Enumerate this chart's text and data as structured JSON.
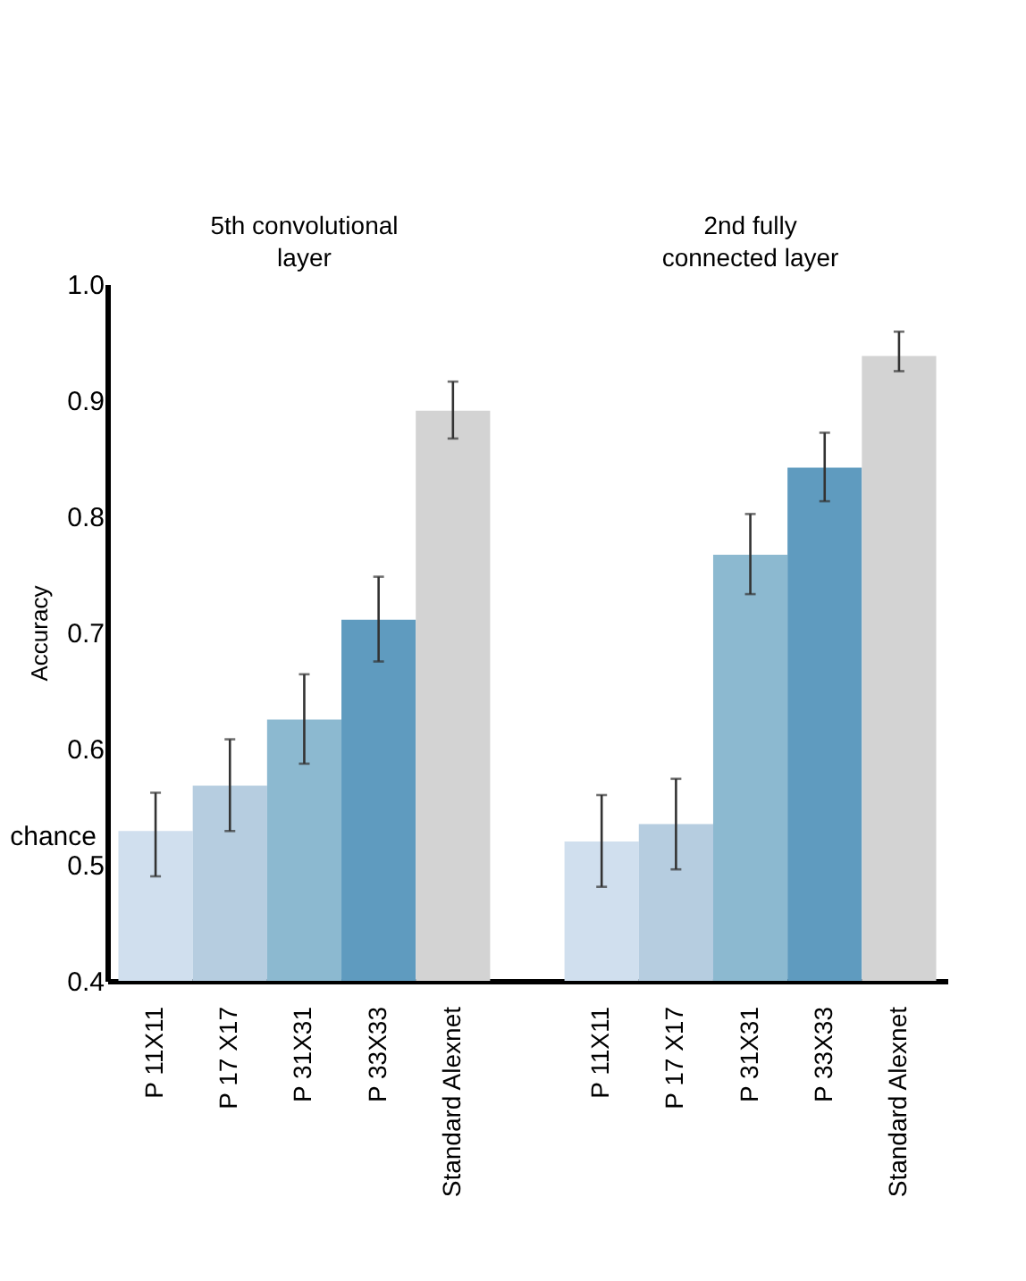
{
  "chart_data": {
    "type": "bar",
    "ylabel": "Accuracy",
    "categories": [
      "P 11X11",
      "P 17 X17",
      "P 31X31",
      "P 33X33",
      "Standard Alexnet",
      "P 11X11",
      "P 17 X17",
      "P 31X31",
      "P 33X33",
      "Standard Alexnet"
    ],
    "values": [
      0.529,
      0.568,
      0.625,
      0.711,
      0.891,
      0.52,
      0.535,
      0.767,
      0.842,
      0.938
    ],
    "errors": [
      [
        0.49,
        0.562
      ],
      [
        0.529,
        0.608
      ],
      [
        0.587,
        0.664
      ],
      [
        0.675,
        0.748
      ],
      [
        0.867,
        0.916
      ],
      [
        0.481,
        0.56
      ],
      [
        0.496,
        0.574
      ],
      [
        0.733,
        0.802
      ],
      [
        0.813,
        0.872
      ],
      [
        0.925,
        0.959
      ]
    ],
    "colors": [
      "#d0dfee",
      "#b6cde0",
      "#8cb9d0",
      "#5f9bbf",
      "#d3d3d3",
      "#d0dfee",
      "#b6cde0",
      "#8cb9d0",
      "#5f9bbf",
      "#d3d3d3"
    ],
    "ylim": [
      0.4,
      1.0
    ],
    "yticks": [
      0.4,
      0.5,
      0.6,
      0.7,
      0.8,
      0.9,
      {
        "value": 1.0,
        "label": "1.0"
      }
    ],
    "annotations": [
      "5th convolutional\nlayer",
      "2nd fully\nconnected layer",
      "chance"
    ],
    "grid": false
  }
}
